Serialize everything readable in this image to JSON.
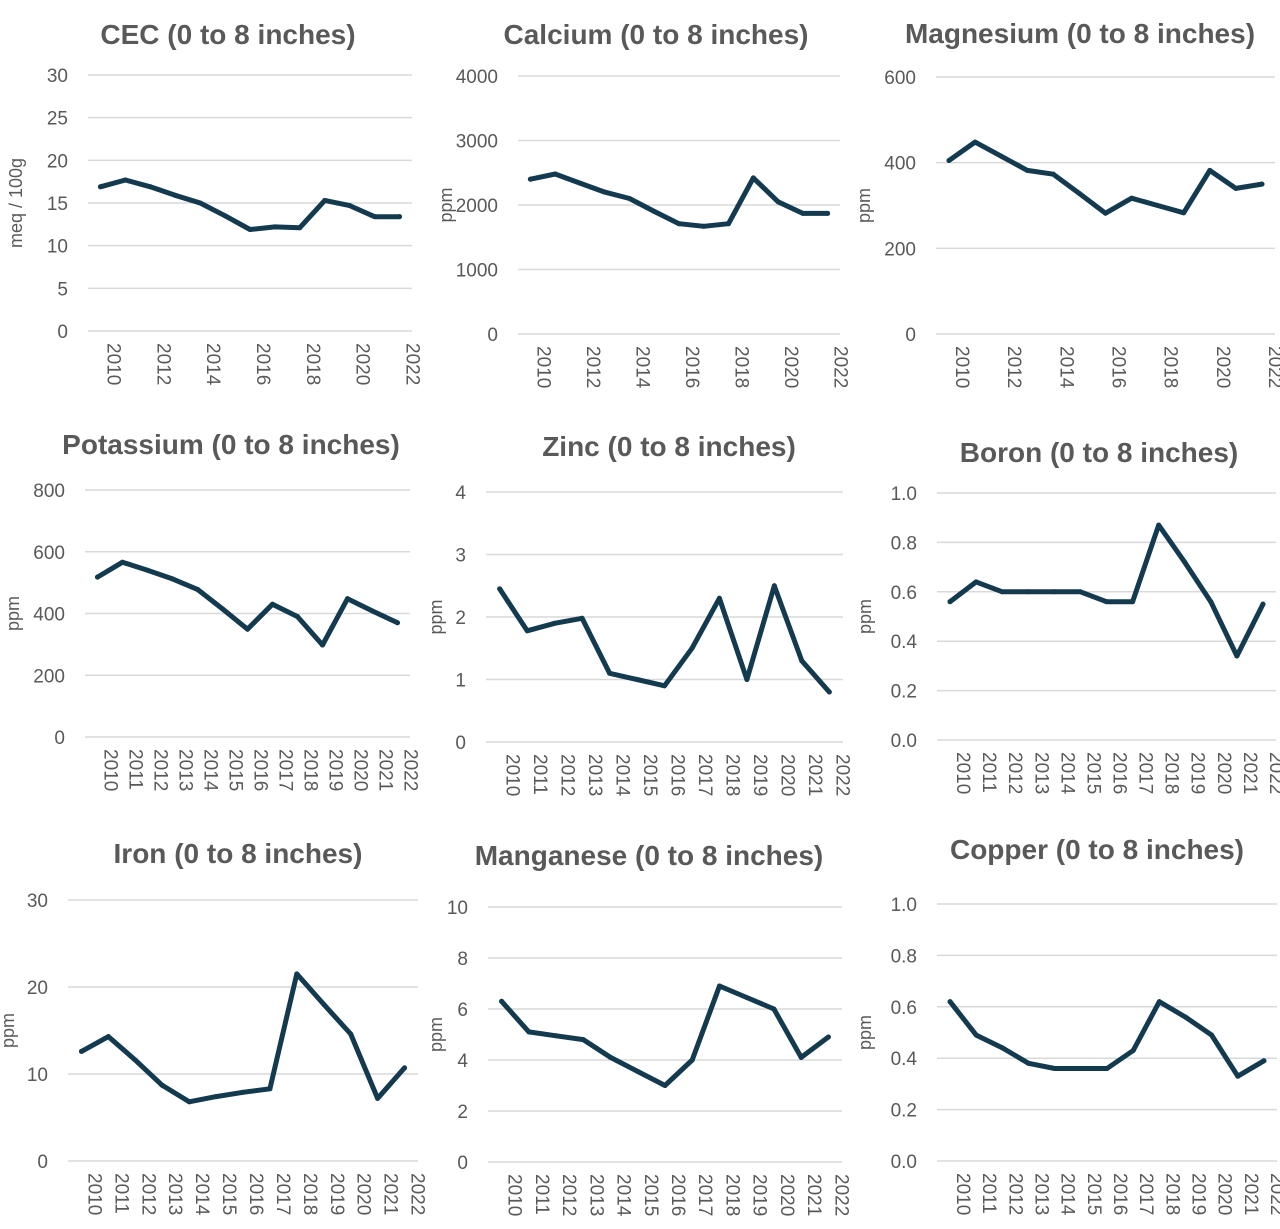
{
  "colors": {
    "series": "#133a4f",
    "grid": "#d9d9d9",
    "text": "#595959"
  },
  "chart_data": [
    {
      "type": "line",
      "title": "CEC (0 to 8 inches)",
      "ylabel": "meq / 100g",
      "xlabel": "",
      "ylim": [
        0,
        30
      ],
      "yticks": [
        "0",
        "5",
        "10",
        "15",
        "20",
        "25",
        "30"
      ],
      "x": [
        2010,
        2011,
        2012,
        2013,
        2014,
        2015,
        2016,
        2017,
        2018,
        2019,
        2020,
        2021,
        2022
      ],
      "xtick_labels": [
        "2010",
        "2012",
        "2014",
        "2016",
        "2018",
        "2020",
        "2022"
      ],
      "values": [
        16.9,
        17.7,
        16.9,
        15.9,
        15.0,
        13.5,
        11.9,
        12.2,
        12.1,
        15.3,
        14.7,
        13.4,
        13.4
      ]
    },
    {
      "type": "line",
      "title": "Calcium (0 to 8 inches)",
      "ylabel": "ppm",
      "xlabel": "",
      "ylim": [
        0,
        4000
      ],
      "yticks": [
        "0",
        "1000",
        "2000",
        "3000",
        "4000"
      ],
      "x": [
        2010,
        2011,
        2012,
        2013,
        2014,
        2015,
        2016,
        2017,
        2018,
        2019,
        2020,
        2021,
        2022
      ],
      "xtick_labels": [
        "2010",
        "2012",
        "2014",
        "2016",
        "2018",
        "2020",
        "2022"
      ],
      "values": [
        2400,
        2480,
        2340,
        2200,
        2100,
        1900,
        1710,
        1670,
        1710,
        2420,
        2050,
        1870,
        1870
      ]
    },
    {
      "type": "line",
      "title": "Magnesium (0 to 8 inches)",
      "ylabel": "ppm",
      "xlabel": "",
      "ylim": [
        0,
        600
      ],
      "yticks": [
        "0",
        "200",
        "400",
        "600"
      ],
      "x": [
        2010,
        2011,
        2012,
        2013,
        2014,
        2015,
        2016,
        2017,
        2018,
        2019,
        2020,
        2021,
        2022
      ],
      "xtick_labels": [
        "2010",
        "2012",
        "2014",
        "2016",
        "2018",
        "2020",
        "2022"
      ],
      "values": [
        405,
        448,
        415,
        382,
        373,
        328,
        282,
        317,
        300,
        283,
        382,
        340,
        350
      ]
    },
    {
      "type": "line",
      "title": "Potassium (0 to 8 inches)",
      "ylabel": "ppm",
      "xlabel": "",
      "ylim": [
        0,
        800
      ],
      "yticks": [
        "0",
        "200",
        "400",
        "600",
        "800"
      ],
      "x": [
        2010,
        2011,
        2012,
        2013,
        2014,
        2015,
        2016,
        2017,
        2018,
        2019,
        2020,
        2021,
        2022
      ],
      "xtick_labels": [
        "2010",
        "2011",
        "2012",
        "2013",
        "2014",
        "2015",
        "2016",
        "2017",
        "2018",
        "2019",
        "2020",
        "2021",
        "2022"
      ],
      "values": [
        518,
        566,
        540,
        512,
        478,
        415,
        349,
        430,
        390,
        298,
        448,
        408,
        370
      ]
    },
    {
      "type": "line",
      "title": "Zinc (0 to 8 inches)",
      "ylabel": "ppm",
      "xlabel": "",
      "ylim": [
        0,
        4
      ],
      "yticks": [
        "0",
        "1",
        "2",
        "3",
        "4"
      ],
      "x": [
        2010,
        2011,
        2012,
        2013,
        2014,
        2015,
        2016,
        2017,
        2018,
        2019,
        2020,
        2021,
        2022
      ],
      "xtick_labels": [
        "2010",
        "2011",
        "2012",
        "2013",
        "2014",
        "2015",
        "2016",
        "2017",
        "2018",
        "2019",
        "2020",
        "2021",
        "2022"
      ],
      "values": [
        2.45,
        1.78,
        1.9,
        1.98,
        1.1,
        1.0,
        0.9,
        1.5,
        2.3,
        1.0,
        2.5,
        1.3,
        0.8
      ]
    },
    {
      "type": "line",
      "title": "Boron (0 to 8 inches)",
      "ylabel": "ppm",
      "xlabel": "",
      "ylim": [
        0,
        1.0
      ],
      "yticks": [
        "0.0",
        "0.2",
        "0.4",
        "0.6",
        "0.8",
        "1.0"
      ],
      "x": [
        2010,
        2011,
        2012,
        2013,
        2014,
        2015,
        2016,
        2017,
        2018,
        2019,
        2020,
        2021,
        2022
      ],
      "xtick_labels": [
        "2010",
        "2011",
        "2012",
        "2013",
        "2014",
        "2015",
        "2016",
        "2017",
        "2018",
        "2019",
        "2020",
        "2021",
        "2022"
      ],
      "values": [
        0.56,
        0.64,
        0.6,
        0.6,
        0.6,
        0.6,
        0.56,
        0.56,
        0.87,
        0.72,
        0.56,
        0.34,
        0.55
      ]
    },
    {
      "type": "line",
      "title": "Iron (0 to 8 inches)",
      "ylabel": "ppm",
      "xlabel": "",
      "ylim": [
        0,
        30
      ],
      "yticks": [
        "0",
        "10",
        "20",
        "30"
      ],
      "x": [
        2010,
        2011,
        2012,
        2013,
        2014,
        2015,
        2016,
        2017,
        2018,
        2019,
        2020,
        2021,
        2022
      ],
      "xtick_labels": [
        "2010",
        "2011",
        "2012",
        "2013",
        "2014",
        "2015",
        "2016",
        "2017",
        "2018",
        "2019",
        "2020",
        "2021",
        "2022"
      ],
      "values": [
        12.6,
        14.3,
        11.6,
        8.7,
        6.8,
        7.4,
        7.9,
        8.3,
        21.5,
        18.0,
        14.6,
        7.2,
        10.7
      ]
    },
    {
      "type": "line",
      "title": "Manganese (0 to 8 inches)",
      "ylabel": "ppm",
      "xlabel": "",
      "ylim": [
        0,
        10
      ],
      "yticks": [
        "0",
        "2",
        "4",
        "6",
        "8",
        "10"
      ],
      "x": [
        2010,
        2011,
        2012,
        2013,
        2014,
        2015,
        2016,
        2017,
        2018,
        2019,
        2020,
        2021,
        2022
      ],
      "xtick_labels": [
        "2010",
        "2011",
        "2012",
        "2013",
        "2014",
        "2015",
        "2016",
        "2017",
        "2018",
        "2019",
        "2020",
        "2021",
        "2022"
      ],
      "values": [
        6.3,
        5.1,
        4.95,
        4.8,
        4.1,
        3.55,
        3.0,
        4.0,
        6.9,
        6.45,
        6.0,
        4.1,
        4.9
      ]
    },
    {
      "type": "line",
      "title": "Copper (0 to 8 inches)",
      "ylabel": "ppm",
      "xlabel": "",
      "ylim": [
        0,
        1.0
      ],
      "yticks": [
        "0.0",
        "0.2",
        "0.4",
        "0.6",
        "0.8",
        "1.0"
      ],
      "x": [
        2010,
        2011,
        2012,
        2013,
        2014,
        2015,
        2016,
        2017,
        2018,
        2019,
        2020,
        2021,
        2022
      ],
      "xtick_labels": [
        "2010",
        "2011",
        "2012",
        "2013",
        "2014",
        "2015",
        "2016",
        "2017",
        "2018",
        "2019",
        "2020",
        "2021",
        "2022"
      ],
      "values": [
        0.62,
        0.49,
        0.44,
        0.38,
        0.36,
        0.36,
        0.36,
        0.43,
        0.62,
        0.56,
        0.49,
        0.33,
        0.39
      ]
    }
  ]
}
